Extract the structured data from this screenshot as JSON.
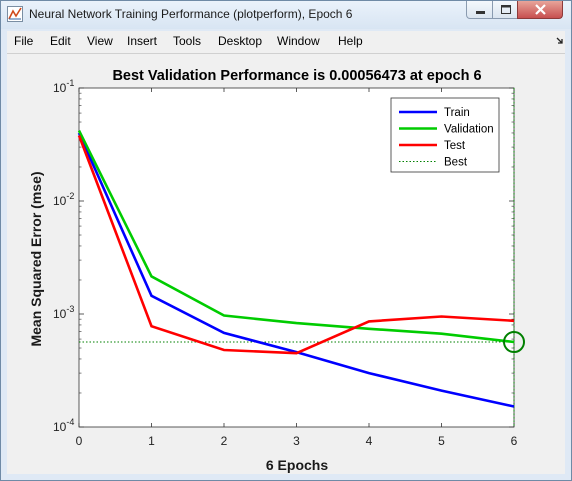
{
  "window": {
    "title": "Neural Network Training Performance (plotperform), Epoch 6"
  },
  "icons": {
    "app": "matlab-figure-icon",
    "minimize": "minimize-icon",
    "maximize": "maximize-icon",
    "close": "close-icon",
    "menu_dock": "dock-arrow-icon"
  },
  "menu": {
    "items": [
      "File",
      "Edit",
      "View",
      "Insert",
      "Tools",
      "Desktop",
      "Window",
      "Help"
    ]
  },
  "chart_data": {
    "type": "line",
    "title": "Best Validation Performance is 0.00056473 at epoch 6",
    "xlabel": "6 Epochs",
    "ylabel": "Mean Squared Error  (mse)",
    "xlim": [
      0,
      6
    ],
    "ylim": [
      0.0001,
      0.1
    ],
    "yscale": "log",
    "x_ticks": [
      0,
      1,
      2,
      3,
      4,
      5,
      6
    ],
    "y_ticks": [
      {
        "base": "10",
        "exp": "-4",
        "value": 0.0001
      },
      {
        "base": "10",
        "exp": "-3",
        "value": 0.001
      },
      {
        "base": "10",
        "exp": "-2",
        "value": 0.01
      },
      {
        "base": "10",
        "exp": "-1",
        "value": 0.1
      }
    ],
    "x": [
      0,
      1,
      2,
      3,
      4,
      5,
      6
    ],
    "series": [
      {
        "name": "Train",
        "color": "#0000ff",
        "values": [
          0.04,
          0.00145,
          0.00068,
          0.00046,
          0.0003,
          0.00021,
          0.000152
        ]
      },
      {
        "name": "Validation",
        "color": "#00cc00",
        "values": [
          0.042,
          0.00215,
          0.00097,
          0.00083,
          0.00074,
          0.00067,
          0.00056473
        ]
      },
      {
        "name": "Test",
        "color": "#ff0000",
        "values": [
          0.038,
          0.00078,
          0.00048,
          0.00045,
          0.00086,
          0.00095,
          0.00087
        ]
      }
    ],
    "best": {
      "name": "Best",
      "epoch": 6,
      "value": 0.00056473,
      "color": "#008000"
    },
    "legend_position": "top-right",
    "grid": false
  }
}
